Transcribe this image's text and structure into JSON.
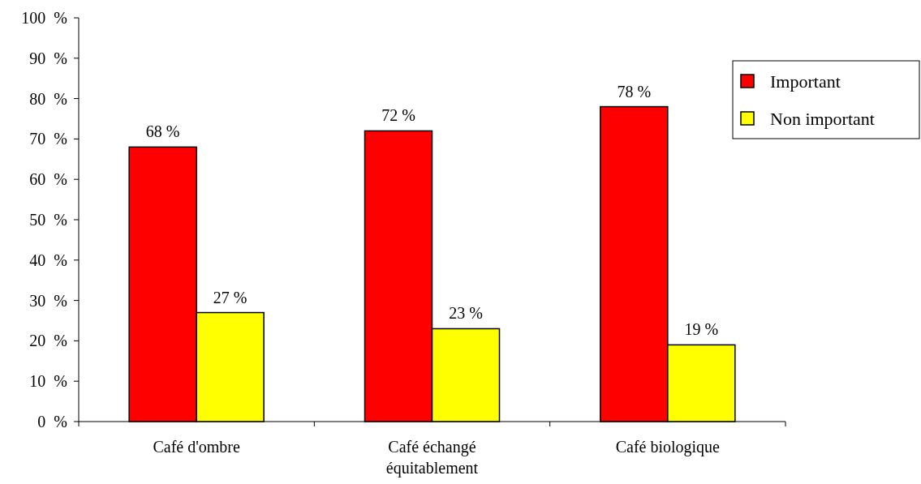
{
  "chart_data": {
    "type": "bar",
    "categories": [
      "Café d'ombre",
      "Café échangé équitablement",
      "Café biologique"
    ],
    "series": [
      {
        "name": "Important",
        "color": "#ff0000",
        "values": [
          68,
          72,
          78
        ],
        "value_labels": [
          "68 %",
          "72 %",
          "78 %"
        ]
      },
      {
        "name": "Non important",
        "color": "#ffff00",
        "values": [
          27,
          23,
          19
        ],
        "value_labels": [
          "27 %",
          "23 %",
          "19 %"
        ]
      }
    ],
    "ylim": [
      0,
      100
    ],
    "yticks": [
      {
        "value": 0,
        "label": "0  %"
      },
      {
        "value": 10,
        "label": "10  %"
      },
      {
        "value": 20,
        "label": "20  %"
      },
      {
        "value": 30,
        "label": "30  %"
      },
      {
        "value": 40,
        "label": "40  %"
      },
      {
        "value": 50,
        "label": "50  %"
      },
      {
        "value": 60,
        "label": "60  %"
      },
      {
        "value": 70,
        "label": "70  %"
      },
      {
        "value": 80,
        "label": "80  %"
      },
      {
        "value": 90,
        "label": "90  %"
      },
      {
        "value": 100,
        "label": "100  %"
      }
    ],
    "grid": false,
    "legend": "top right"
  }
}
